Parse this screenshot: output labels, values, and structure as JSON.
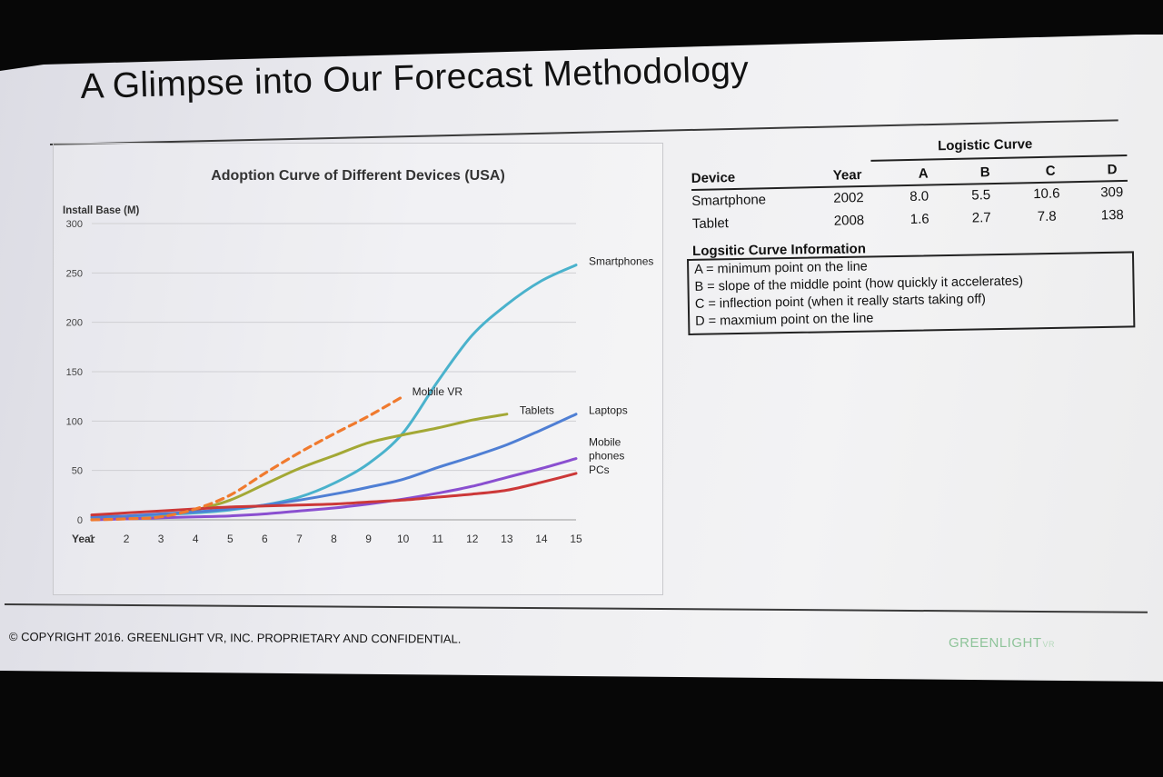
{
  "slide": {
    "title": "A Glimpse into Our Forecast Methodology",
    "copyright": "© COPYRIGHT 2016. GREENLIGHT VR, INC. PROPRIETARY AND CONFIDENTIAL.",
    "logo_text": "GREENLIGHT",
    "logo_suffix": "VR"
  },
  "logistic_table": {
    "group_header": "Logistic Curve",
    "columns": [
      "Device",
      "Year",
      "A",
      "B",
      "C",
      "D"
    ],
    "rows": [
      [
        "Smartphone",
        "2002",
        "8.0",
        "5.5",
        "10.6",
        "309"
      ],
      [
        "Tablet",
        "2008",
        "1.6",
        "2.7",
        "7.8",
        "138"
      ]
    ]
  },
  "curve_info": {
    "heading": "Logsitic Curve Information",
    "lines": [
      "A = minimum point on the line",
      "B = slope of the middle point (how quickly it accelerates)",
      "C = inflection point (when it really starts taking off)",
      "D = maxmium point on the line"
    ]
  },
  "chart_data": {
    "type": "line",
    "title": "Adoption Curve of Different Devices (USA)",
    "ylabel": "Install Base (M)",
    "xlabel": "Year",
    "ylim": [
      0,
      300
    ],
    "yticks": [
      0,
      50,
      100,
      150,
      200,
      250,
      300
    ],
    "x": [
      1,
      2,
      3,
      4,
      5,
      6,
      7,
      8,
      9,
      10,
      11,
      12,
      13,
      14,
      15
    ],
    "grid": true,
    "legend": "inline labels at line ends",
    "series": [
      {
        "name": "Smartphones",
        "color": "#4ab2cc",
        "dashed": false,
        "values": [
          2,
          3,
          5,
          7,
          10,
          15,
          23,
          37,
          57,
          88,
          140,
          187,
          218,
          242,
          258
        ]
      },
      {
        "name": "Tablets",
        "color": "#a3a835",
        "dashed": false,
        "values": [
          null,
          null,
          4,
          10,
          20,
          36,
          52,
          65,
          78,
          86,
          93,
          101,
          107,
          null,
          null
        ]
      },
      {
        "name": "Laptops",
        "color": "#4f7fd4",
        "dashed": false,
        "values": [
          3,
          4,
          6,
          8,
          11,
          15,
          20,
          26,
          33,
          41,
          53,
          64,
          76,
          91,
          107
        ]
      },
      {
        "name": "Mobile phones",
        "color": "#8a4fd0",
        "dashed": false,
        "values": [
          0,
          1,
          2,
          3,
          4,
          6,
          9,
          12,
          16,
          21,
          27,
          34,
          43,
          52,
          62
        ]
      },
      {
        "name": "PCs",
        "color": "#cc3838",
        "dashed": false,
        "values": [
          5,
          7,
          9,
          11,
          13,
          14,
          15,
          16,
          18,
          20,
          23,
          26,
          30,
          38,
          47
        ]
      },
      {
        "name": "Mobile VR",
        "color": "#f07a2e",
        "dashed": true,
        "values": [
          0,
          1,
          3,
          11,
          25,
          47,
          68,
          87,
          105,
          125,
          null,
          null,
          null,
          null,
          null
        ]
      }
    ]
  }
}
